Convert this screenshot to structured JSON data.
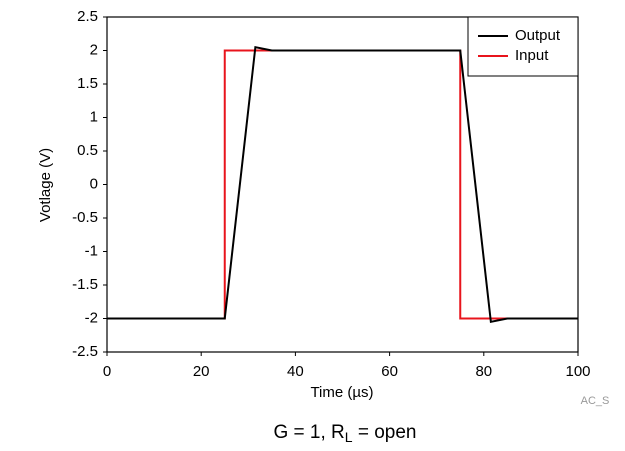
{
  "chart_data": {
    "type": "line",
    "x_label": "Time (µs)",
    "y_label": "Votlage (V)",
    "caption": {
      "parts": [
        "G = 1, R",
        "L",
        " = open"
      ]
    },
    "watermark": "AC_S",
    "xlim": [
      0,
      100
    ],
    "xticks": [
      0,
      20,
      40,
      60,
      80,
      100
    ],
    "ylim": [
      -2.5,
      2.5
    ],
    "yticks": [
      2.5,
      2,
      1.5,
      1,
      0.5,
      0,
      -0.5,
      -1,
      -1.5,
      -2,
      -2.5
    ],
    "grid": false,
    "legend": "upper right",
    "series": [
      {
        "name": "Output",
        "color": "#000000",
        "x": [
          0,
          25,
          31.5,
          35,
          75,
          81.5,
          85,
          100
        ],
        "values": [
          -2,
          -2,
          2.05,
          2,
          2,
          -2.05,
          -2,
          -2
        ]
      },
      {
        "name": "Input",
        "color": "#e8141c",
        "x": [
          0,
          25,
          25,
          75,
          75,
          100
        ],
        "values": [
          -2,
          -2,
          2,
          2,
          -2,
          -2
        ]
      }
    ]
  }
}
